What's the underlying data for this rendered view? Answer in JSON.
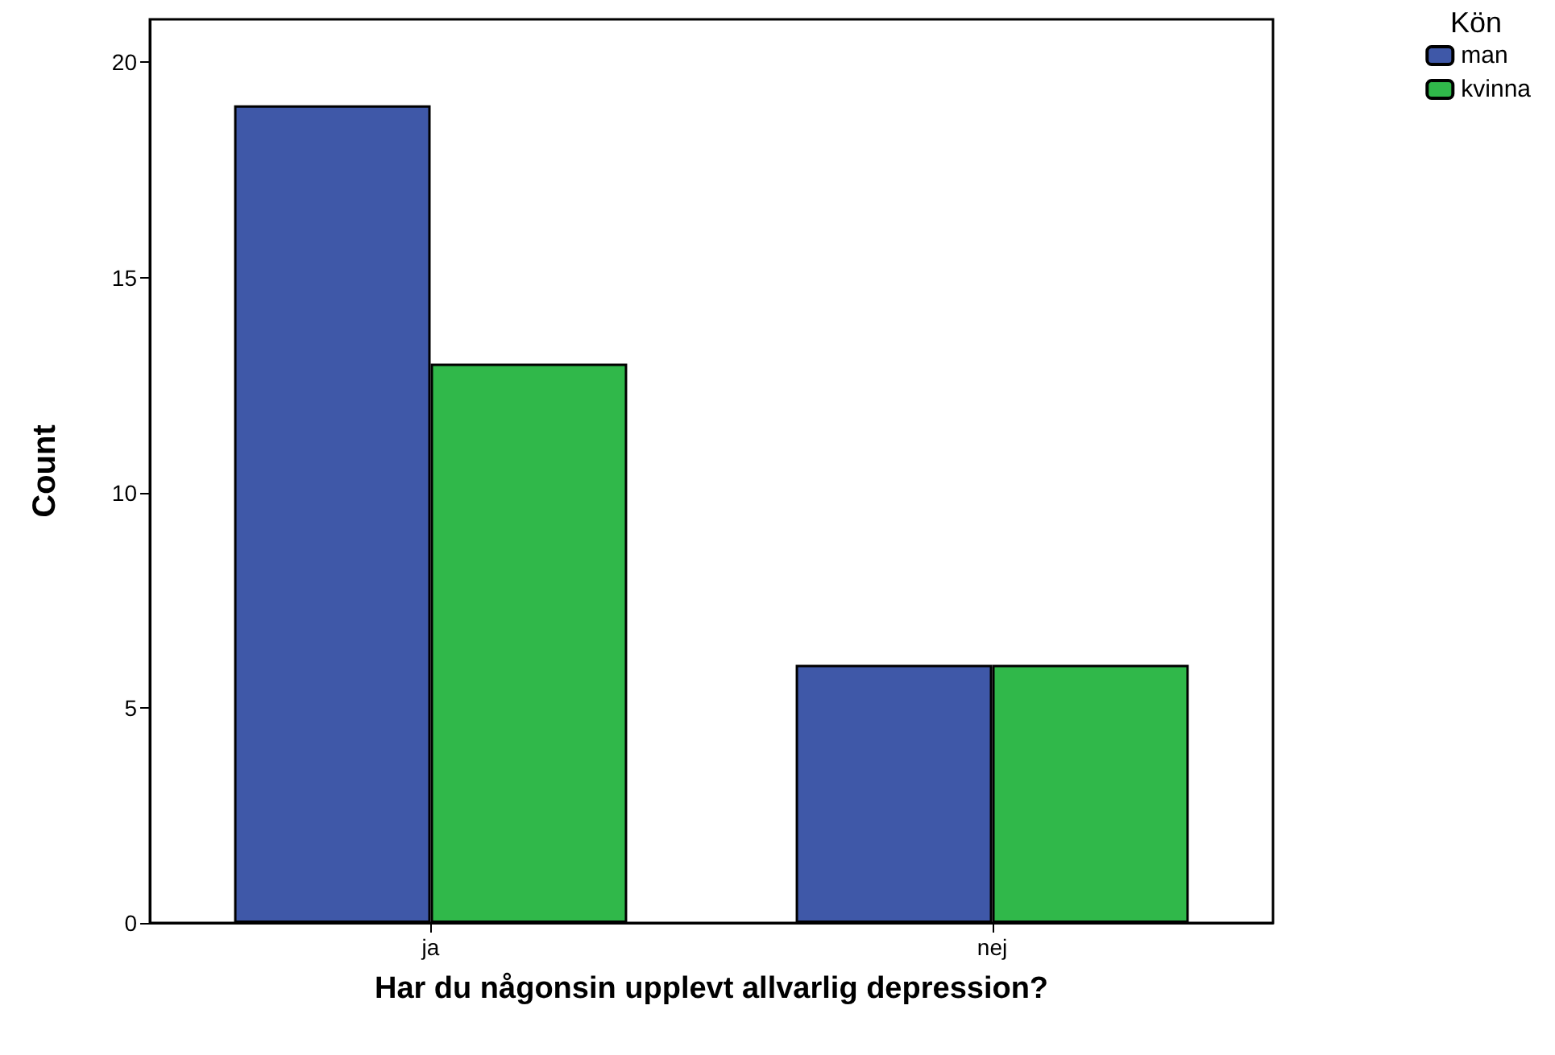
{
  "chart_data": {
    "type": "bar",
    "xlabel": "Har du någonsin upplevt allvarlig depression?",
    "ylabel": "Count",
    "legend_title": "Kön",
    "categories": [
      "ja",
      "nej"
    ],
    "series": [
      {
        "name": "man",
        "color": "#3f58a8",
        "values": [
          19,
          6
        ]
      },
      {
        "name": "kvinna",
        "color": "#30b84a",
        "values": [
          13,
          6
        ]
      }
    ],
    "ylim": [
      0,
      21
    ],
    "yticks": [
      0,
      5,
      10,
      15,
      20
    ],
    "grid": false,
    "legend": "top right"
  }
}
